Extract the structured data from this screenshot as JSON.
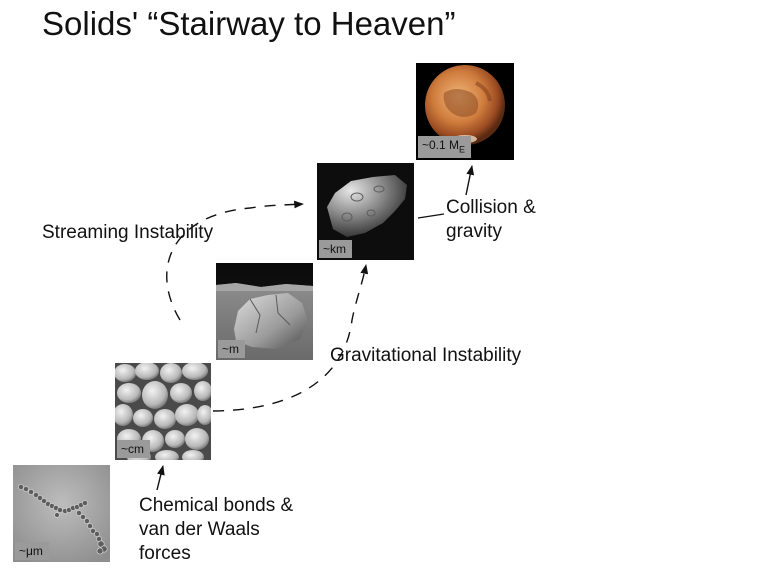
{
  "slide": {
    "title": "Solids'  “Stairway to Heaven”"
  },
  "stages": [
    {
      "name": "dust-aggregate",
      "scale_label": "~μm"
    },
    {
      "name": "pebbles",
      "scale_label": "~cm"
    },
    {
      "name": "boulder",
      "scale_label": "~m"
    },
    {
      "name": "asteroid",
      "scale_label": "~km"
    },
    {
      "name": "mars",
      "scale_label_main": "~0.1 M",
      "scale_label_sub": "E"
    }
  ],
  "processes": {
    "chemical_bonds": [
      "Chemical bonds &",
      "van der Waals",
      "forces"
    ],
    "gravitational_instability": "Gravitational Instability",
    "streaming_instability": "Streaming Instability",
    "collision_gravity": [
      "Collision &",
      "gravity"
    ]
  }
}
